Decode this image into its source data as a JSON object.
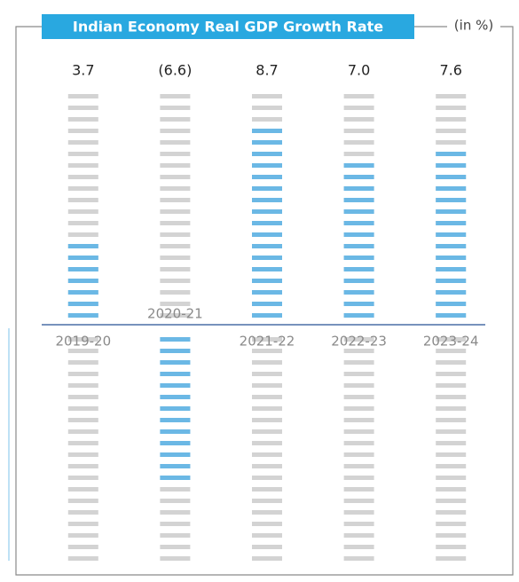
{
  "chart_data": {
    "type": "bar",
    "title": "Indian Economy Real GDP Growth Rate",
    "subtitle": "(in %)",
    "categories": [
      "2019-20",
      "2020-21",
      "2021-22",
      "2022-23",
      "2023-24"
    ],
    "values": [
      3.7,
      -6.6,
      8.7,
      7.0,
      7.6
    ],
    "value_labels": [
      "3.7",
      "(6.6)",
      "8.7",
      "7.0",
      "7.6"
    ],
    "color": "#6bb8e5",
    "ylim": [
      -10,
      10
    ]
  }
}
